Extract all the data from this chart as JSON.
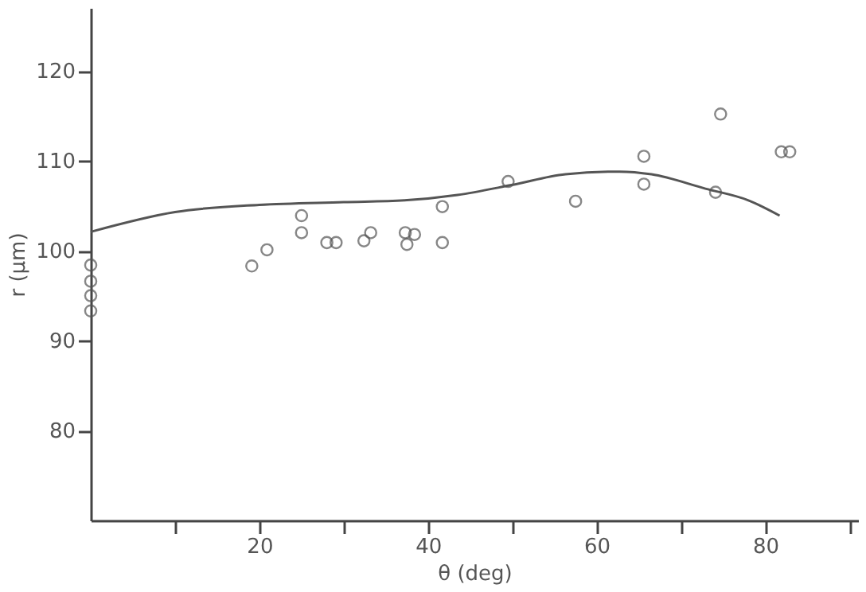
{
  "chart_data": {
    "type": "scatter",
    "xlabel": "θ (deg)",
    "ylabel": "r (μm)",
    "xlim": [
      0,
      91
    ],
    "ylim": [
      70,
      127
    ],
    "xticks": [
      {
        "value": 10,
        "label": null
      },
      20,
      {
        "value": 30,
        "label": null
      },
      40,
      {
        "value": 50,
        "label": null
      },
      60,
      {
        "value": 70,
        "label": null
      },
      80,
      {
        "value": 90,
        "label": null
      }
    ],
    "yticks": [
      80,
      90,
      100,
      110,
      120
    ],
    "grid": false,
    "marker": "circle",
    "series": [
      {
        "color": "#555555",
        "x": [
          0,
          0,
          0,
          0,
          19.1,
          20.9,
          25.0,
          25.0,
          28.0,
          29.1,
          32.4,
          33.2,
          37.3,
          37.5,
          38.4,
          41.7,
          41.7,
          49.5,
          57.5,
          65.6,
          65.6,
          74.1,
          74.7,
          81.9,
          82.9
        ],
        "values": [
          98.4,
          96.6,
          95.0,
          93.3,
          98.3,
          100.1,
          103.9,
          102.0,
          100.9,
          100.9,
          101.1,
          102.0,
          102.0,
          100.7,
          101.8,
          104.9,
          100.9,
          107.7,
          105.5,
          110.5,
          107.4,
          106.5,
          115.2,
          111.0,
          111.0
        ]
      },
      {
        "type": "line",
        "color": "#555555",
        "marker": "none",
        "x": [
          0,
          10,
          20,
          30,
          37.2,
          43.5,
          49.9,
          56.3,
          62.7,
          66.5,
          72.9,
          78.0,
          81.7
        ],
        "values": [
          102.1,
          104.3,
          105.1,
          105.4,
          105.6,
          106.2,
          107.3,
          108.5,
          108.8,
          108.5,
          106.9,
          105.6,
          103.9
        ]
      }
    ]
  }
}
